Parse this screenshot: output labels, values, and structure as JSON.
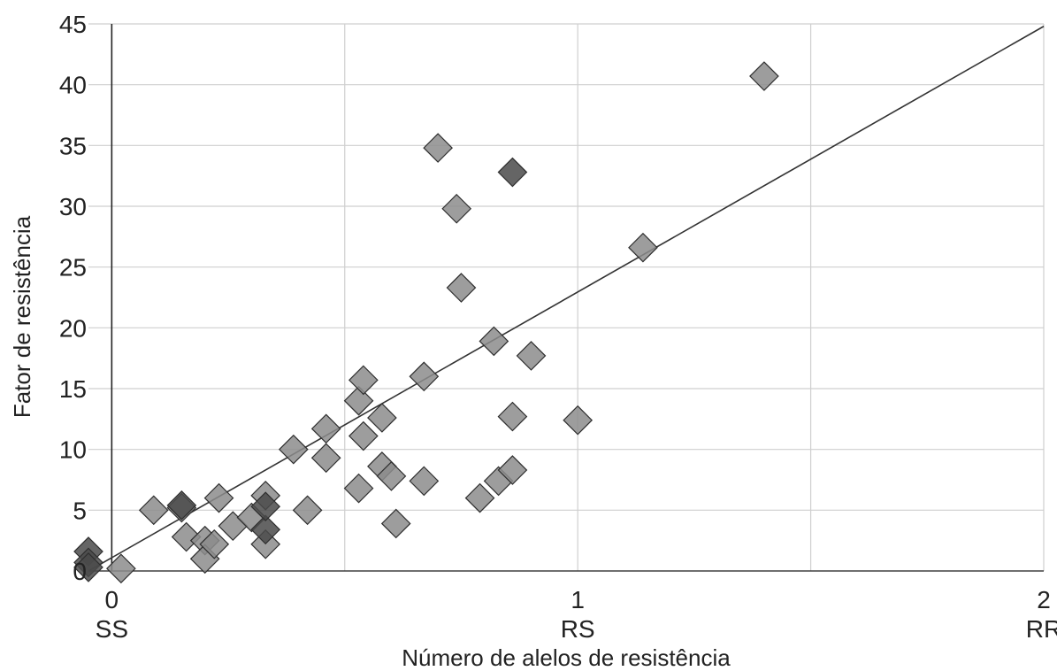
{
  "chart_data": {
    "type": "scatter",
    "title": "",
    "xlabel": "Número de alelos de resistência",
    "ylabel": "Fator de resistência",
    "xlim": [
      -0.05,
      2
    ],
    "ylim": [
      0,
      45
    ],
    "x_ticks": [
      {
        "value": 0,
        "label": "0",
        "sublabel": "SS"
      },
      {
        "value": 1,
        "label": "1",
        "sublabel": "RS"
      },
      {
        "value": 2,
        "label": "2",
        "sublabel": "RR"
      }
    ],
    "y_ticks": [
      0,
      5,
      10,
      15,
      20,
      25,
      30,
      35,
      40,
      45
    ],
    "grid": true,
    "colors": {
      "light_point": "#8c8c8c",
      "dark_point": "#4a4a4a",
      "trendline": "#333333",
      "grid": "#cfcfcf"
    },
    "trendline": {
      "x": [
        -0.05,
        2
      ],
      "y": [
        0,
        44.8
      ]
    },
    "series": [
      {
        "values": [
          {
            "x": 0.02,
            "y": 0.2
          },
          {
            "x": 0.09,
            "y": 5.0
          },
          {
            "x": 0.15,
            "y": 5.2
          },
          {
            "x": 0.16,
            "y": 2.8
          },
          {
            "x": 0.2,
            "y": 2.5
          },
          {
            "x": 0.2,
            "y": 1.0
          },
          {
            "x": 0.22,
            "y": 2.2
          },
          {
            "x": 0.23,
            "y": 6.0
          },
          {
            "x": 0.26,
            "y": 3.7
          },
          {
            "x": 0.3,
            "y": 4.4
          },
          {
            "x": 0.33,
            "y": 2.2
          },
          {
            "x": 0.33,
            "y": 6.2
          },
          {
            "x": 0.39,
            "y": 10.0
          },
          {
            "x": 0.42,
            "y": 5.0
          },
          {
            "x": 0.46,
            "y": 11.7
          },
          {
            "x": 0.46,
            "y": 9.3
          },
          {
            "x": 0.53,
            "y": 6.8
          },
          {
            "x": 0.53,
            "y": 14.0
          },
          {
            "x": 0.54,
            "y": 15.7
          },
          {
            "x": 0.54,
            "y": 11.1
          },
          {
            "x": 0.58,
            "y": 12.6
          },
          {
            "x": 0.58,
            "y": 8.6
          },
          {
            "x": 0.6,
            "y": 7.8
          },
          {
            "x": 0.61,
            "y": 3.9
          },
          {
            "x": 0.67,
            "y": 7.4
          },
          {
            "x": 0.67,
            "y": 16.0
          },
          {
            "x": 0.7,
            "y": 34.8
          },
          {
            "x": 0.74,
            "y": 29.8
          },
          {
            "x": 0.75,
            "y": 23.3
          },
          {
            "x": 0.79,
            "y": 6.0
          },
          {
            "x": 0.82,
            "y": 18.9
          },
          {
            "x": 0.83,
            "y": 7.4
          },
          {
            "x": 0.86,
            "y": 8.3
          },
          {
            "x": 0.86,
            "y": 12.7
          },
          {
            "x": 0.9,
            "y": 17.7
          },
          {
            "x": 1.0,
            "y": 12.4
          },
          {
            "x": 1.14,
            "y": 26.6
          },
          {
            "x": 1.4,
            "y": 40.7
          }
        ]
      },
      {
        "values": [
          {
            "x": -0.05,
            "y": 1.6
          },
          {
            "x": -0.05,
            "y": 0.7
          },
          {
            "x": -0.05,
            "y": 0.3
          },
          {
            "x": 0.15,
            "y": 5.4
          },
          {
            "x": 0.33,
            "y": 3.4
          },
          {
            "x": 0.33,
            "y": 5.3
          },
          {
            "x": 0.86,
            "y": 32.8
          }
        ]
      }
    ]
  }
}
